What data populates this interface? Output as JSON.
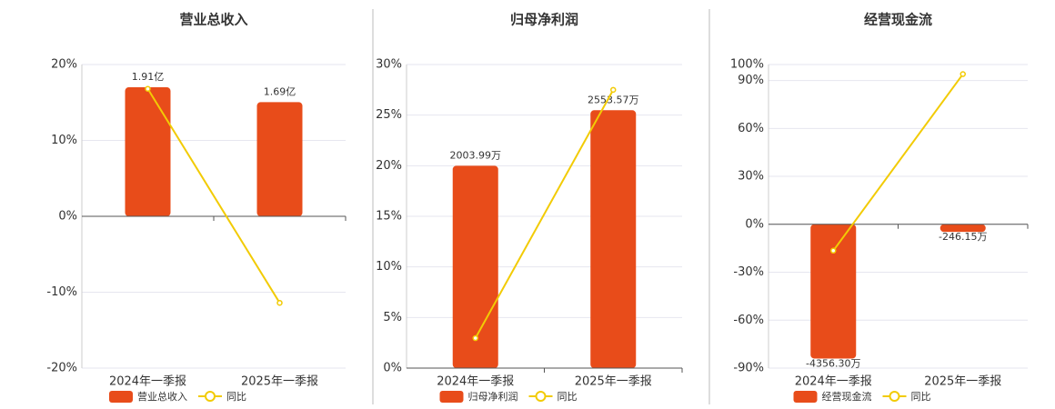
{
  "chart_data": [
    {
      "type": "combo",
      "title": "营业总收入",
      "categories": [
        "2024年一季报",
        "2025年一季报"
      ],
      "series": [
        {
          "name": "营业总收入",
          "type": "bar",
          "axis": "y2",
          "color": "#e84c1a",
          "values": [
            1.91,
            1.69
          ],
          "value_labels": [
            "1.91亿",
            "1.69亿"
          ]
        },
        {
          "name": "同比",
          "type": "line",
          "color": "#f2cb05",
          "values": [
            16.8,
            -11.4
          ]
        }
      ],
      "ylim": [
        -20,
        20
      ],
      "yticks": [
        {
          "value": -20,
          "label": "-20%"
        },
        {
          "value": -10,
          "label": "-10%"
        },
        {
          "value": 0,
          "label": "0%"
        },
        {
          "value": 10,
          "label": "10%"
        },
        {
          "value": 20,
          "label": "20%"
        }
      ],
      "y2lim": [
        -2.247,
        2.247
      ],
      "grid": true
    },
    {
      "type": "combo",
      "title": "归母净利润",
      "categories": [
        "2024年一季报",
        "2025年一季报"
      ],
      "series": [
        {
          "name": "归母净利润",
          "type": "bar",
          "axis": "y2",
          "color": "#e84c1a",
          "values": [
            2003.99,
            2553.57
          ],
          "value_labels": [
            "2003.99万",
            "2553.57万"
          ]
        },
        {
          "name": "同比",
          "type": "line",
          "color": "#f2cb05",
          "values": [
            2.96,
            27.5
          ]
        }
      ],
      "ylim": [
        0,
        30
      ],
      "yticks": [
        {
          "value": 0,
          "label": "0%"
        },
        {
          "value": 5,
          "label": "5%"
        },
        {
          "value": 10,
          "label": "10%"
        },
        {
          "value": 15,
          "label": "15%"
        },
        {
          "value": 20,
          "label": "20%"
        },
        {
          "value": 25,
          "label": "25%"
        },
        {
          "value": 30,
          "label": "30%"
        }
      ],
      "y2lim": [
        0,
        3006
      ],
      "grid": true
    },
    {
      "type": "combo",
      "title": "经营现金流",
      "categories": [
        "2024年一季报",
        "2025年一季报"
      ],
      "series": [
        {
          "name": "经营现金流",
          "type": "bar",
          "axis": "y2",
          "color": "#e84c1a",
          "values": [
            -4356.3,
            -246.15
          ],
          "value_labels": [
            "-4356.30万",
            "-246.15万"
          ]
        },
        {
          "name": "同比",
          "type": "line",
          "color": "#f2cb05",
          "values": [
            -16.5,
            94
          ]
        }
      ],
      "ylim": [
        -90,
        100
      ],
      "yticks": [
        {
          "value": -90,
          "label": "-90%"
        },
        {
          "value": -60,
          "label": "-60%"
        },
        {
          "value": -30,
          "label": "-30%"
        },
        {
          "value": 0,
          "label": "0%"
        },
        {
          "value": 30,
          "label": "30%"
        },
        {
          "value": 60,
          "label": "60%"
        },
        {
          "value": 90,
          "label": "90%"
        },
        {
          "value": 100,
          "label": "100%"
        }
      ],
      "y2lim": [
        -4667,
        5186
      ],
      "grid": true
    }
  ]
}
